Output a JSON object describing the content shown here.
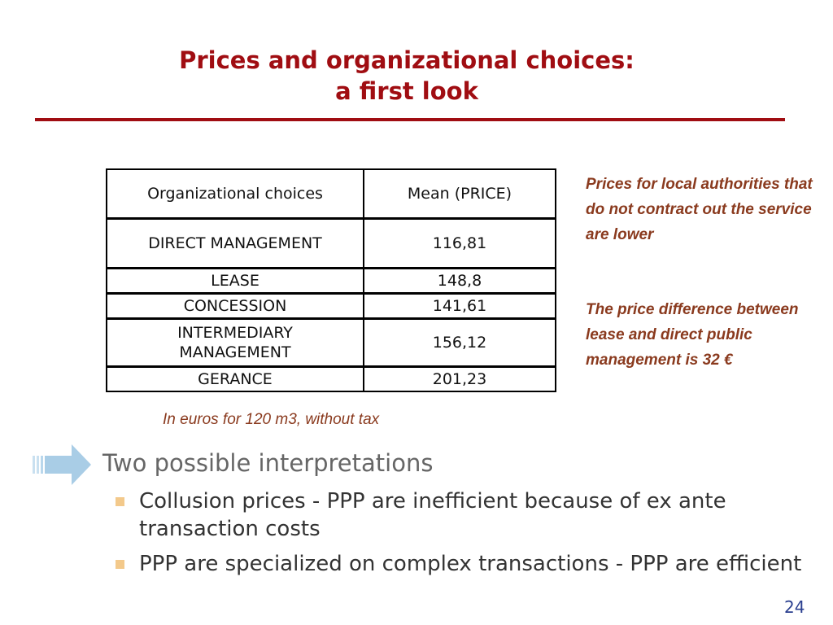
{
  "slide": {
    "title_line1": "Prices and organizational choices:",
    "title_line2": "a first look",
    "page_number": "24"
  },
  "table": {
    "headers": [
      "Organizational choices",
      "Mean (PRICE)"
    ],
    "rows": [
      {
        "choice": "DIRECT MANAGEMENT",
        "price": "116,81"
      },
      {
        "choice": "LEASE",
        "price": "148,8"
      },
      {
        "choice": "CONCESSION",
        "price": "141,61"
      },
      {
        "choice_line1": "INTERMEDIARY",
        "choice_line2": "MANAGEMENT",
        "price": "156,12"
      },
      {
        "choice": "GERANCE",
        "price": "201,23"
      }
    ],
    "caption": "In euros for 120 m3, without tax"
  },
  "notes": {
    "note1": "Prices for local authorities that do not contract out the service are lower",
    "note2": "The price difference between lease and direct public management is 32 €"
  },
  "body": {
    "heading": "Two possible interpretations",
    "bullets": [
      "Collusion prices - PPP are inefficient because of ex ante transaction costs",
      "PPP are specialized on complex transactions - PPP are efficient"
    ]
  },
  "colors": {
    "title": "#a00d12",
    "note_text": "#8a3a1e",
    "bullet_square": "#f3c98b",
    "arrow": "#a9cde6",
    "page_number": "#2a3f8f"
  },
  "icons": {
    "arrow": "right-arrow-icon",
    "bullet": "square-bullet-icon"
  }
}
